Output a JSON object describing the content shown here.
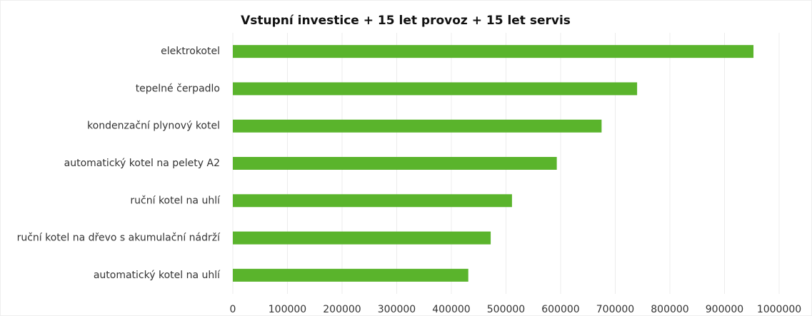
{
  "chart_data": {
    "type": "bar",
    "orientation": "horizontal",
    "title": "Vstupní investice + 15 let provoz + 15 let servis",
    "categories": [
      "elektrokotel",
      "tepelné čerpadlo",
      "kondenzační plynový kotel",
      "automatický kotel na pelety A2",
      "ruční kotel na uhlí",
      "ruční kotel na dřevo s akumulační nádrží",
      "automatický kotel na uhlí"
    ],
    "values": [
      953000,
      740000,
      675000,
      593000,
      511000,
      472000,
      431000
    ],
    "color": "#5ab42c",
    "xlim": [
      0,
      1000000
    ],
    "xticks": [
      0,
      100000,
      200000,
      300000,
      400000,
      500000,
      600000,
      700000,
      800000,
      900000,
      1000000
    ],
    "grid": true
  }
}
